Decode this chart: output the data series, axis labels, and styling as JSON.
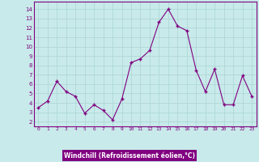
{
  "x": [
    0,
    1,
    2,
    3,
    4,
    5,
    6,
    7,
    8,
    9,
    10,
    11,
    12,
    13,
    14,
    15,
    16,
    17,
    18,
    19,
    20,
    21,
    22,
    23
  ],
  "y": [
    3.5,
    4.2,
    6.3,
    5.2,
    4.7,
    2.9,
    3.8,
    3.2,
    2.2,
    4.4,
    8.3,
    8.7,
    9.6,
    12.6,
    14.0,
    12.2,
    11.7,
    7.5,
    5.2,
    7.6,
    3.8,
    3.8,
    6.9,
    4.7
  ],
  "xlabel": "Windchill (Refroidissement éolien,°C)",
  "xlim": [
    -0.5,
    23.5
  ],
  "ylim": [
    1.5,
    14.8
  ],
  "yticks": [
    2,
    3,
    4,
    5,
    6,
    7,
    8,
    9,
    10,
    11,
    12,
    13,
    14
  ],
  "xticks": [
    0,
    1,
    2,
    3,
    4,
    5,
    6,
    7,
    8,
    9,
    10,
    11,
    12,
    13,
    14,
    15,
    16,
    17,
    18,
    19,
    20,
    21,
    22,
    23
  ],
  "line_color": "#800080",
  "marker_color": "#800080",
  "bg_color": "#c8eaea",
  "grid_color": "#b0d8d8",
  "xlabel_color": "#ffffff",
  "xlabel_bg": "#800080",
  "tick_label_color": "#800080",
  "spine_color": "#800080"
}
